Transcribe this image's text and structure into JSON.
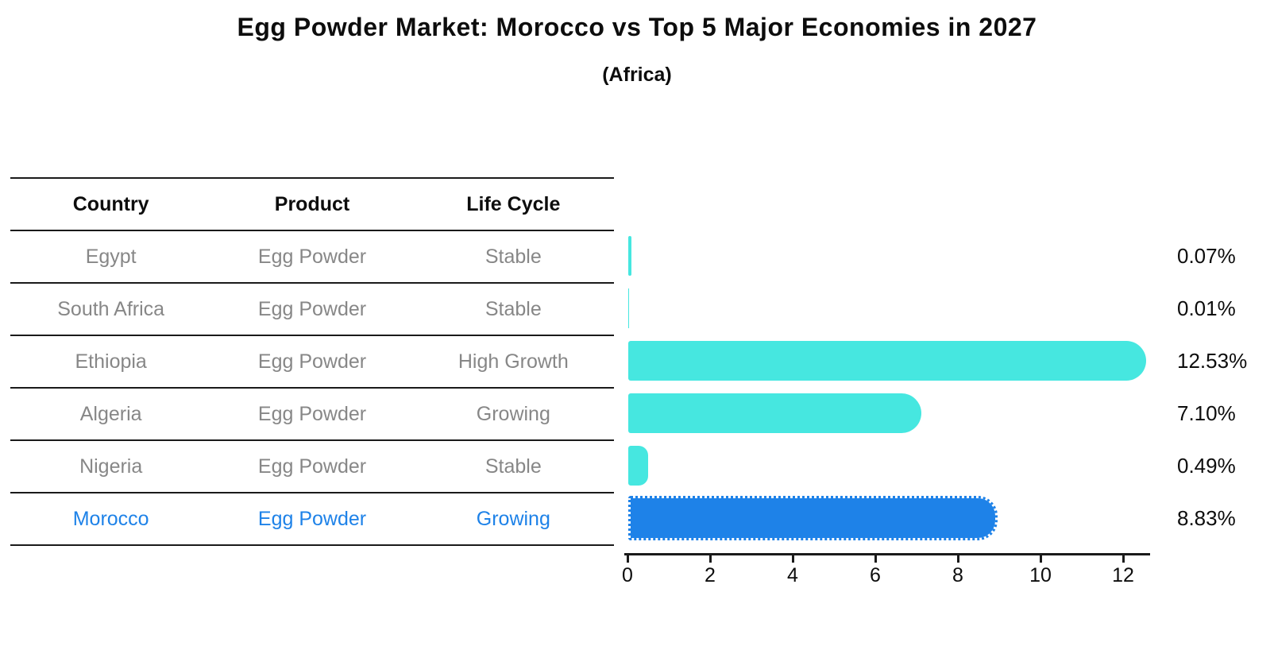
{
  "title": "Egg Powder Market: Morocco vs Top 5 Major Economies in 2027",
  "subtitle": "(Africa)",
  "table": {
    "headers": [
      "Country",
      "Product",
      "Life Cycle"
    ],
    "rows": [
      {
        "country": "Egypt",
        "product": "Egg Powder",
        "life_cycle": "Stable",
        "highlight": false
      },
      {
        "country": "South Africa",
        "product": "Egg Powder",
        "life_cycle": "Stable",
        "highlight": false
      },
      {
        "country": "Ethiopia",
        "product": "Egg Powder",
        "life_cycle": "High Growth",
        "highlight": false
      },
      {
        "country": "Algeria",
        "product": "Egg Powder",
        "life_cycle": "Growing",
        "highlight": false
      },
      {
        "country": "Nigeria",
        "product": "Egg Powder",
        "life_cycle": "Stable",
        "highlight": false
      },
      {
        "country": "Morocco",
        "product": "Egg Powder",
        "life_cycle": "Growing",
        "highlight": true
      }
    ]
  },
  "chart_data": {
    "type": "bar",
    "orientation": "horizontal",
    "title": "Egg Powder Market: Morocco vs Top 5 Major Economies in 2027",
    "subtitle": "(Africa)",
    "categories": [
      "Egypt",
      "South Africa",
      "Ethiopia",
      "Algeria",
      "Nigeria",
      "Morocco"
    ],
    "values": [
      0.07,
      0.01,
      12.53,
      7.1,
      0.49,
      8.83
    ],
    "value_labels": [
      "0.07%",
      "0.01%",
      "12.53%",
      "7.10%",
      "0.49%",
      "8.83%"
    ],
    "x_ticks": [
      0,
      2,
      4,
      6,
      8,
      10,
      12
    ],
    "xlim": [
      0,
      12.8
    ],
    "grid": false,
    "legend": "none",
    "bar_color": "#46e7e0",
    "highlight_color": "#1e82e8",
    "highlight_index": 5,
    "highlight_style": "dotted-border"
  },
  "colors": {
    "bar": "#46e7e0",
    "highlight": "#1e82e8",
    "table_text": "#878787",
    "header_text": "#0d0d0d",
    "line": "#1a1a1a"
  }
}
